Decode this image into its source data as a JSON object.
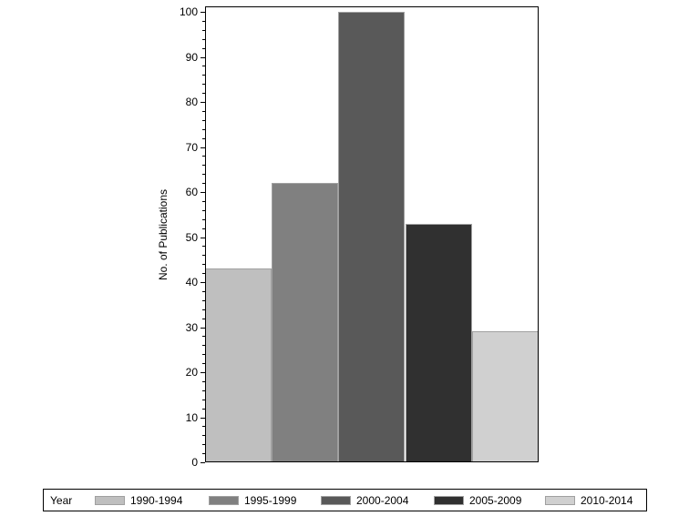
{
  "chart_data": {
    "type": "bar",
    "title": "",
    "xlabel": "",
    "ylabel": "No. of Publications",
    "ylim": [
      0,
      100
    ],
    "yticks": [
      0,
      10,
      20,
      30,
      40,
      50,
      60,
      70,
      80,
      90,
      100
    ],
    "grid": false,
    "legend_position": "bottom",
    "legend_title": "Year",
    "categories": [
      "1990-1994",
      "1995-1999",
      "2000-2004",
      "2005-2009",
      "2010-2014"
    ],
    "values": [
      43,
      62,
      100,
      53,
      29
    ],
    "colors": [
      "#bfbfbf",
      "#808080",
      "#595959",
      "#303030",
      "#d0d0d0"
    ]
  }
}
